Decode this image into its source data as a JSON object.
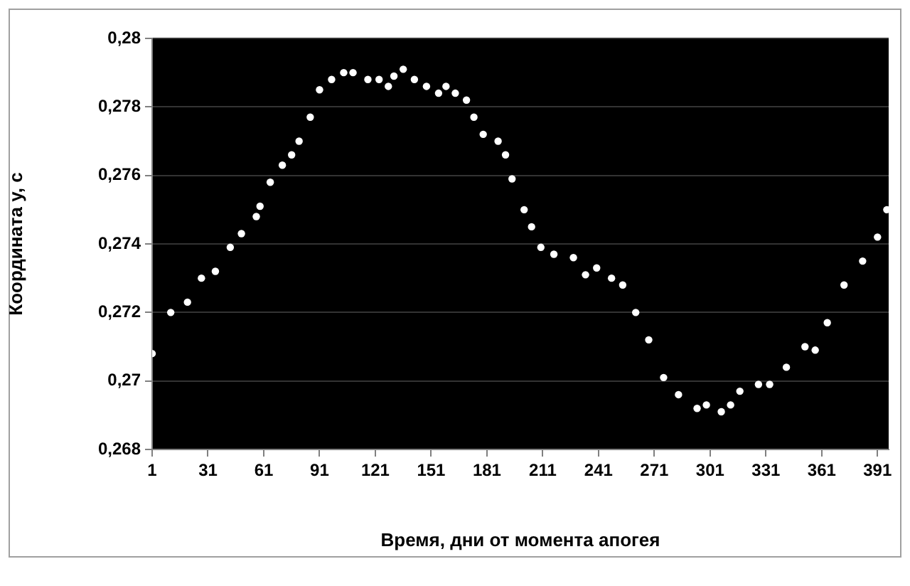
{
  "chart_data": {
    "type": "scatter",
    "xlabel": "Время, дни от момента апогея",
    "ylabel": "Координата y, с",
    "x": [
      1,
      11,
      20,
      27.5,
      35,
      43,
      49,
      57,
      59,
      64.5,
      71,
      76,
      80,
      86,
      91,
      97.5,
      104,
      109,
      117,
      123,
      128,
      131,
      136,
      142,
      148.5,
      155,
      159,
      164,
      170,
      174,
      179,
      187,
      191,
      194.5,
      201,
      205,
      210,
      217,
      227.5,
      234,
      240,
      248,
      254,
      261,
      268,
      276,
      284,
      294,
      299,
      307,
      312,
      317,
      327,
      333,
      342,
      352,
      357.5,
      364,
      373,
      383,
      391,
      396
    ],
    "series": [
      {
        "color": "#ffffff",
        "values": [
          0.2708,
          0.272,
          0.2723,
          0.273,
          0.2732,
          0.2739,
          0.2743,
          0.2748,
          0.2751,
          0.2758,
          0.2763,
          0.2766,
          0.277,
          0.2777,
          0.2785,
          0.2788,
          0.279,
          0.279,
          0.2788,
          0.2788,
          0.2786,
          0.2789,
          0.2791,
          0.2788,
          0.2786,
          0.2784,
          0.2786,
          0.2784,
          0.2782,
          0.2777,
          0.2772,
          0.277,
          0.2766,
          0.2759,
          0.275,
          0.2745,
          0.2739,
          0.2737,
          0.2736,
          0.2731,
          0.2733,
          0.273,
          0.2728,
          0.272,
          0.2712,
          0.2701,
          0.2696,
          0.2692,
          0.2693,
          0.2691,
          0.2693,
          0.2697,
          0.2699,
          0.2699,
          0.2704,
          0.271,
          0.2709,
          0.2717,
          0.2728,
          0.2735,
          0.2742,
          0.275
        ]
      }
    ],
    "xlim": [
      1,
      397
    ],
    "xticks": [
      1,
      31,
      61,
      91,
      121,
      151,
      181,
      211,
      241,
      271,
      301,
      331,
      361,
      391
    ],
    "ylim": [
      0.268,
      0.28
    ],
    "yticks": [
      {
        "value": 0.268,
        "label": "0,268"
      },
      {
        "value": 0.27,
        "label": "0,27"
      },
      {
        "value": 0.272,
        "label": "0,272"
      },
      {
        "value": 0.274,
        "label": "0,274"
      },
      {
        "value": 0.276,
        "label": "0,276"
      },
      {
        "value": 0.278,
        "label": "0,278"
      },
      {
        "value": 0.28,
        "label": "0,28"
      }
    ],
    "grid": "y",
    "legend": false,
    "marker": "circle"
  }
}
